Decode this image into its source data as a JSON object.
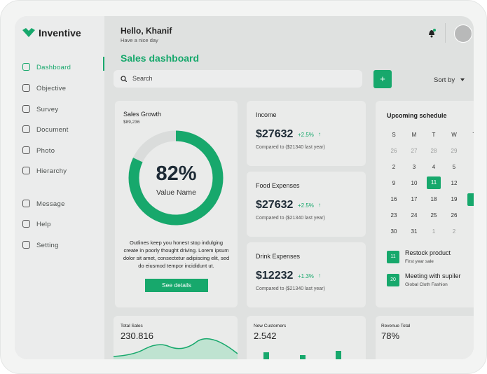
{
  "brand": "Inventive",
  "nav": [
    "Dashboard",
    "Objective",
    "Survey",
    "Document",
    "Photo",
    "Hierarchy"
  ],
  "nav2": [
    "Message",
    "Help",
    "Setting"
  ],
  "header": {
    "greeting": "Hello, Khanif",
    "subtitle": "Have a nice day"
  },
  "page_title": "Sales dashboard",
  "search": "Search",
  "add": "+",
  "sort": "Sort by",
  "sales_growth": {
    "title": "Sales Growth",
    "amount": "$89,236",
    "progress": {
      "value": 82,
      "label": "82%"
    },
    "value_name": "Value Name",
    "text": "Outlines keep you honest stop indulging create in poorly thought driving. Lorem ipsum dolor sit amet, consectetur adipiscing elit, sed do eiusmod tempor incididunt ut.",
    "button": "See details"
  },
  "cards": [
    {
      "title": "Income",
      "value": "$27632",
      "change": "+2.5%",
      "note": "Compared to ($21340 last year)"
    },
    {
      "title": "Food Expenses",
      "value": "$27632",
      "change": "+2.5%",
      "note": "Compared to ($21340 last year)"
    },
    {
      "title": "Drink Expenses",
      "value": "$12232",
      "change": "+1.3%",
      "note": "Compared to ($21340 last year)"
    }
  ],
  "schedule": {
    "title": "Upcoming schedule",
    "weekdays": [
      "S",
      "M",
      "T",
      "W",
      "T"
    ],
    "days": [
      [
        "26",
        "27",
        "28",
        "29"
      ],
      [
        "2",
        "3",
        "4",
        "5"
      ],
      [
        "9",
        "10",
        "11",
        "12"
      ],
      [
        "16",
        "17",
        "18",
        "19"
      ],
      [
        "23",
        "24",
        "25",
        "26"
      ],
      [
        "30",
        "31",
        "1",
        "2"
      ]
    ],
    "events": [
      {
        "day": "11",
        "title": "Restock product",
        "sub": "First year sale"
      },
      {
        "day": "20",
        "title": "Meeting with supiler",
        "sub": "Global Cloth Fashion"
      }
    ]
  },
  "bottom": [
    {
      "title": "Total Sales",
      "value": "230.816"
    },
    {
      "title": "New Customers",
      "value": "2.542"
    },
    {
      "title": "Revenue Total",
      "value": "78%"
    }
  ]
}
